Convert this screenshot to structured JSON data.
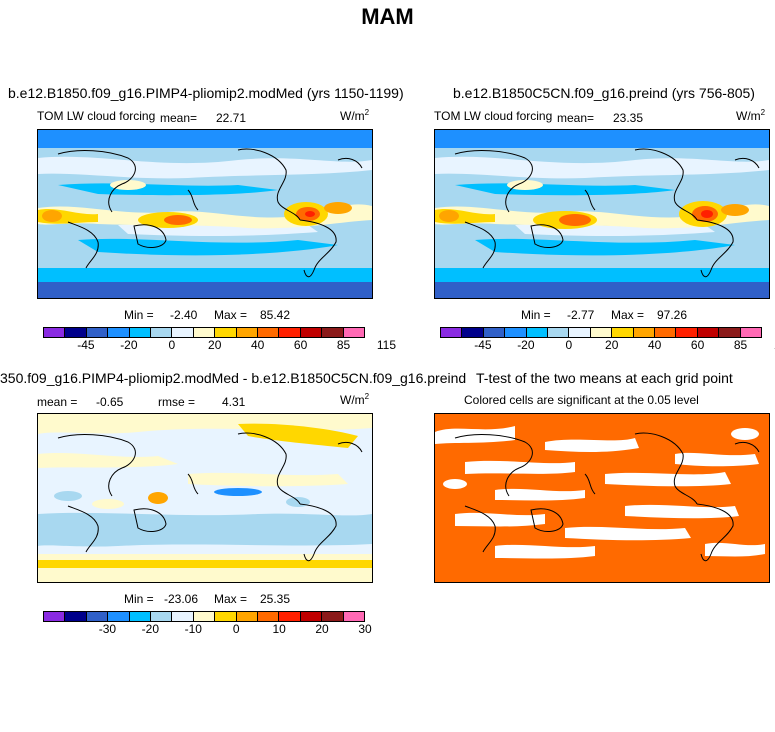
{
  "figure": {
    "title": "MAM",
    "panels": [
      {
        "title": "b.e12.B1850.f09_g16.PIMP4-pliomip2.modMed (yrs 1150-1199)",
        "variable": "TOM LW cloud forcing",
        "stat_label": "mean=",
        "stat_value": "22.71",
        "units": "W/m",
        "units_sup": "2",
        "min_label": "Min =",
        "min_value": "-2.40",
        "max_label": "Max =",
        "max_value": "85.42"
      },
      {
        "title": "b.e12.B1850C5CN.f09_g16.preind (yrs 756-805)",
        "variable": "TOM LW cloud forcing",
        "stat_label": "mean=",
        "stat_value": "23.35",
        "units": "W/m",
        "units_sup": "2",
        "min_label": "Min =",
        "min_value": "-2.77",
        "max_label": "Max =",
        "max_value": "97.26"
      },
      {
        "title": "350.f09_g16.PIMP4-pliomip2.modMed - b.e12.B1850C5CN.f09_g16.preind",
        "mean_label": "mean =",
        "mean_value": "-0.65",
        "rmse_label": "rmse =",
        "rmse_value": "4.31",
        "units": "W/m",
        "units_sup": "2",
        "min_label": "Min =",
        "min_value": "-23.06",
        "max_label": "Max =",
        "max_value": "25.35"
      },
      {
        "title": "T-test of the two means at each grid point",
        "subtitle": "Colored cells are significant at the 0.05 level"
      }
    ],
    "colorbar_abs": {
      "labels": [
        "-45",
        "-20",
        "0",
        "20",
        "40",
        "60",
        "85",
        "115"
      ],
      "colors": [
        "#8a2be2",
        "#00008b",
        "#3060c8",
        "#1e90ff",
        "#00bfff",
        "#a8d8f0",
        "#e8f4ff",
        "#fffacd",
        "#ffd700",
        "#ffa500",
        "#ff6a00",
        "#ff2000",
        "#c00000",
        "#8b1a1a",
        "#ff69b4"
      ]
    },
    "colorbar_diff": {
      "labels": [
        "-30",
        "-20",
        "-10",
        "0",
        "10",
        "20",
        "30"
      ],
      "colors": [
        "#8a2be2",
        "#00008b",
        "#3060c8",
        "#1e90ff",
        "#00bfff",
        "#a8d8f0",
        "#e8f4ff",
        "#fffacd",
        "#ffd700",
        "#ffa500",
        "#ff6a00",
        "#ff2000",
        "#c00000",
        "#8b1a1a",
        "#ff69b4"
      ]
    },
    "significance_color": "#ff6a00"
  }
}
